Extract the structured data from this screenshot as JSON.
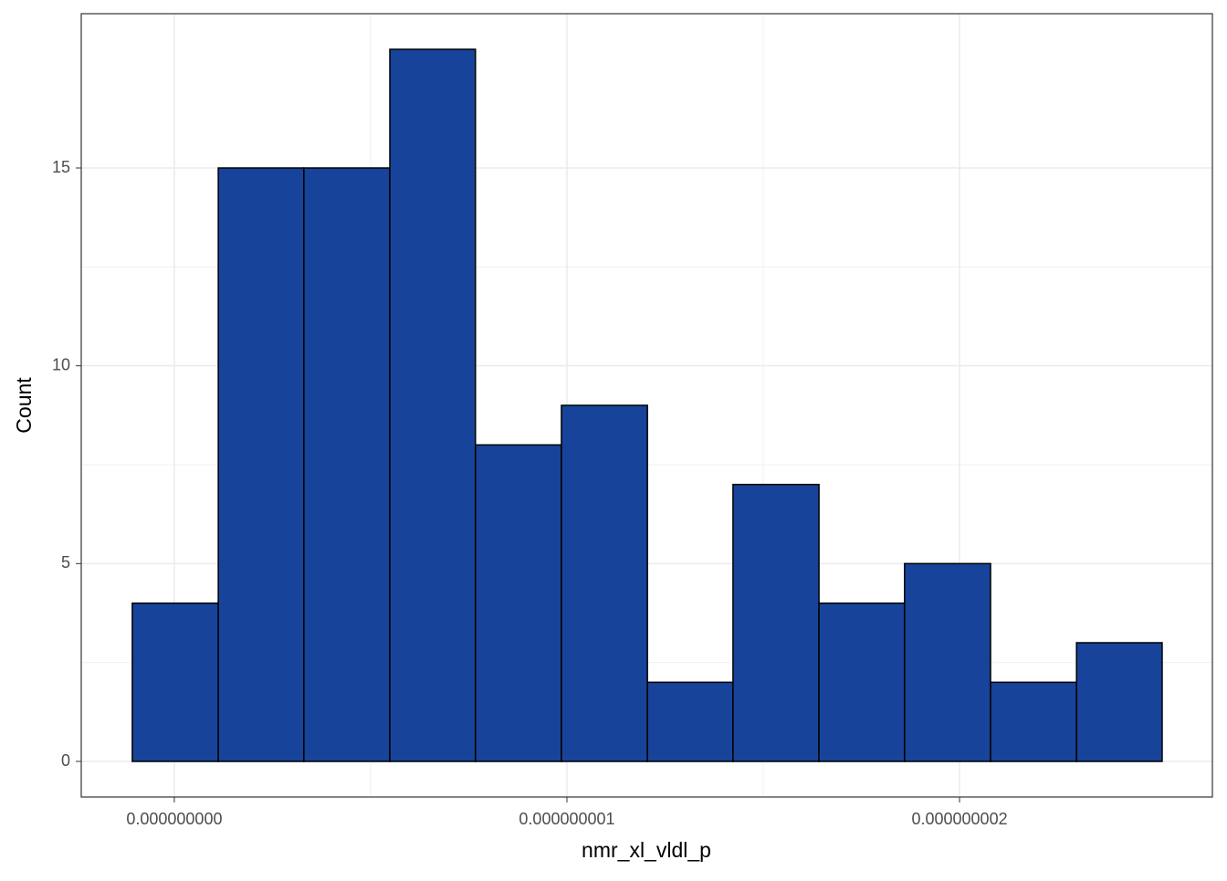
{
  "chart_data": {
    "type": "histogram",
    "x_label": "nmr_xl_vldl_p",
    "y_label": "Count",
    "bins": [
      -1.07e-10,
      1.12e-10,
      3.3e-10,
      5.49e-10,
      7.67e-10,
      9.86e-10,
      1.205e-09,
      1.423e-09,
      1.642e-09,
      1.86e-09,
      2.079e-09,
      2.298e-09,
      2.516e-09
    ],
    "values": [
      4,
      15,
      15,
      18,
      8,
      9,
      2,
      7,
      4,
      5,
      2,
      3
    ],
    "color": "#17449a",
    "edge_color": "#000000",
    "xlim": [
      -2.37e-10,
      2.644e-09
    ],
    "xticks": [
      {
        "value": 0,
        "label": "0.000000000"
      },
      {
        "value": 1e-09,
        "label": "0.000000001"
      },
      {
        "value": 2e-09,
        "label": "0.000000002"
      }
    ],
    "ylim": [
      -0.9,
      18.9
    ],
    "yticks": [
      0,
      5,
      10,
      15
    ],
    "grid": true,
    "minor_grid": true
  }
}
